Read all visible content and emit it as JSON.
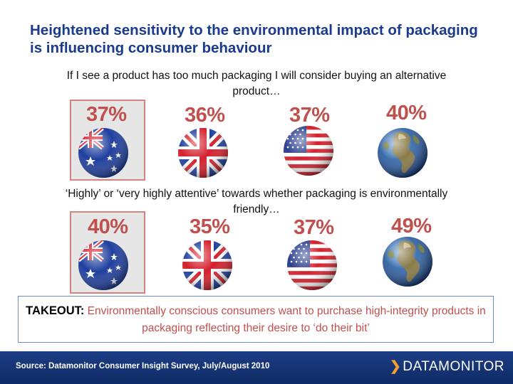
{
  "title": "Heightened sensitivity to the environmental impact of packaging is influencing consumer behaviour",
  "section1": {
    "question": "If I see a product has too much packaging I will consider buying an alternative product…",
    "items": [
      {
        "flag": "australia-flag",
        "value": "37%"
      },
      {
        "flag": "uk-flag",
        "value": "36%"
      },
      {
        "flag": "us-flag",
        "value": "37%"
      },
      {
        "flag": "globe",
        "value": "40%"
      }
    ]
  },
  "section2": {
    "question": "‘Highly’ or ‘very highly attentive’ towards whether packaging is environmentally friendly…",
    "items": [
      {
        "flag": "australia-flag",
        "value": "40%"
      },
      {
        "flag": "uk-flag",
        "value": "35%"
      },
      {
        "flag": "us-flag",
        "value": "37%"
      },
      {
        "flag": "globe",
        "value": "49%"
      }
    ]
  },
  "takeout": {
    "lead": "TAKEOUT:",
    "text": "Environmentally conscious consumers want to purchase high-integrity products in packaging reflecting their desire to ‘do their bit’"
  },
  "footer": {
    "source": "Source: Datamonitor Consumer Insight Survey, July/August 2010",
    "logo": "DATAMONITOR"
  },
  "colors": {
    "title": "#1a3a8c",
    "accent": "#c0504d",
    "footer": "#1d3e86"
  }
}
